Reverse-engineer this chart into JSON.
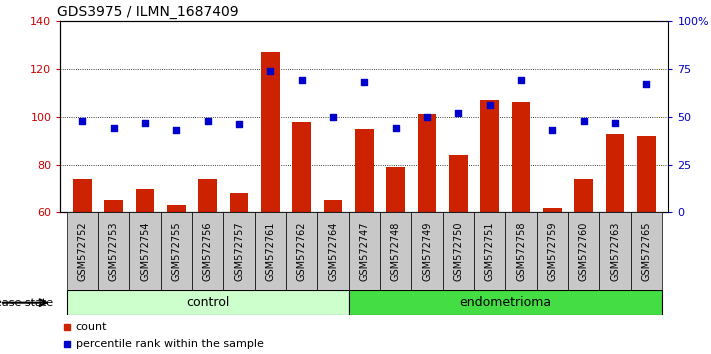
{
  "title": "GDS3975 / ILMN_1687409",
  "samples": [
    "GSM572752",
    "GSM572753",
    "GSM572754",
    "GSM572755",
    "GSM572756",
    "GSM572757",
    "GSM572761",
    "GSM572762",
    "GSM572764",
    "GSM572747",
    "GSM572748",
    "GSM572749",
    "GSM572750",
    "GSM572751",
    "GSM572758",
    "GSM572759",
    "GSM572760",
    "GSM572763",
    "GSM572765"
  ],
  "bar_values": [
    74,
    65,
    70,
    63,
    74,
    68,
    127,
    98,
    65,
    95,
    79,
    101,
    84,
    107,
    106,
    62,
    74,
    93,
    92
  ],
  "dot_values": [
    48,
    44,
    47,
    43,
    48,
    46,
    74,
    69,
    50,
    68,
    44,
    50,
    52,
    56,
    69,
    43,
    48,
    47,
    67
  ],
  "control_count": 9,
  "endometrioma_count": 10,
  "ylim_left": [
    60,
    140
  ],
  "ylim_right": [
    0,
    100
  ],
  "yticks_left": [
    60,
    80,
    100,
    120,
    140
  ],
  "yticks_right": [
    0,
    25,
    50,
    75,
    100
  ],
  "ytick_labels_right": [
    "0",
    "25",
    "50",
    "75",
    "100%"
  ],
  "bar_color": "#cc2200",
  "dot_color": "#0000cc",
  "plot_bg_color": "#ffffff",
  "label_bg_color": "#c8c8c8",
  "control_color": "#ccffcc",
  "endometrioma_color": "#44dd44",
  "grid_color": "#000000",
  "xlabel_fontsize": 7,
  "title_fontsize": 10,
  "legend_fontsize": 8,
  "ylabel_left_color": "#cc0000",
  "ylabel_right_color": "#0000cc"
}
